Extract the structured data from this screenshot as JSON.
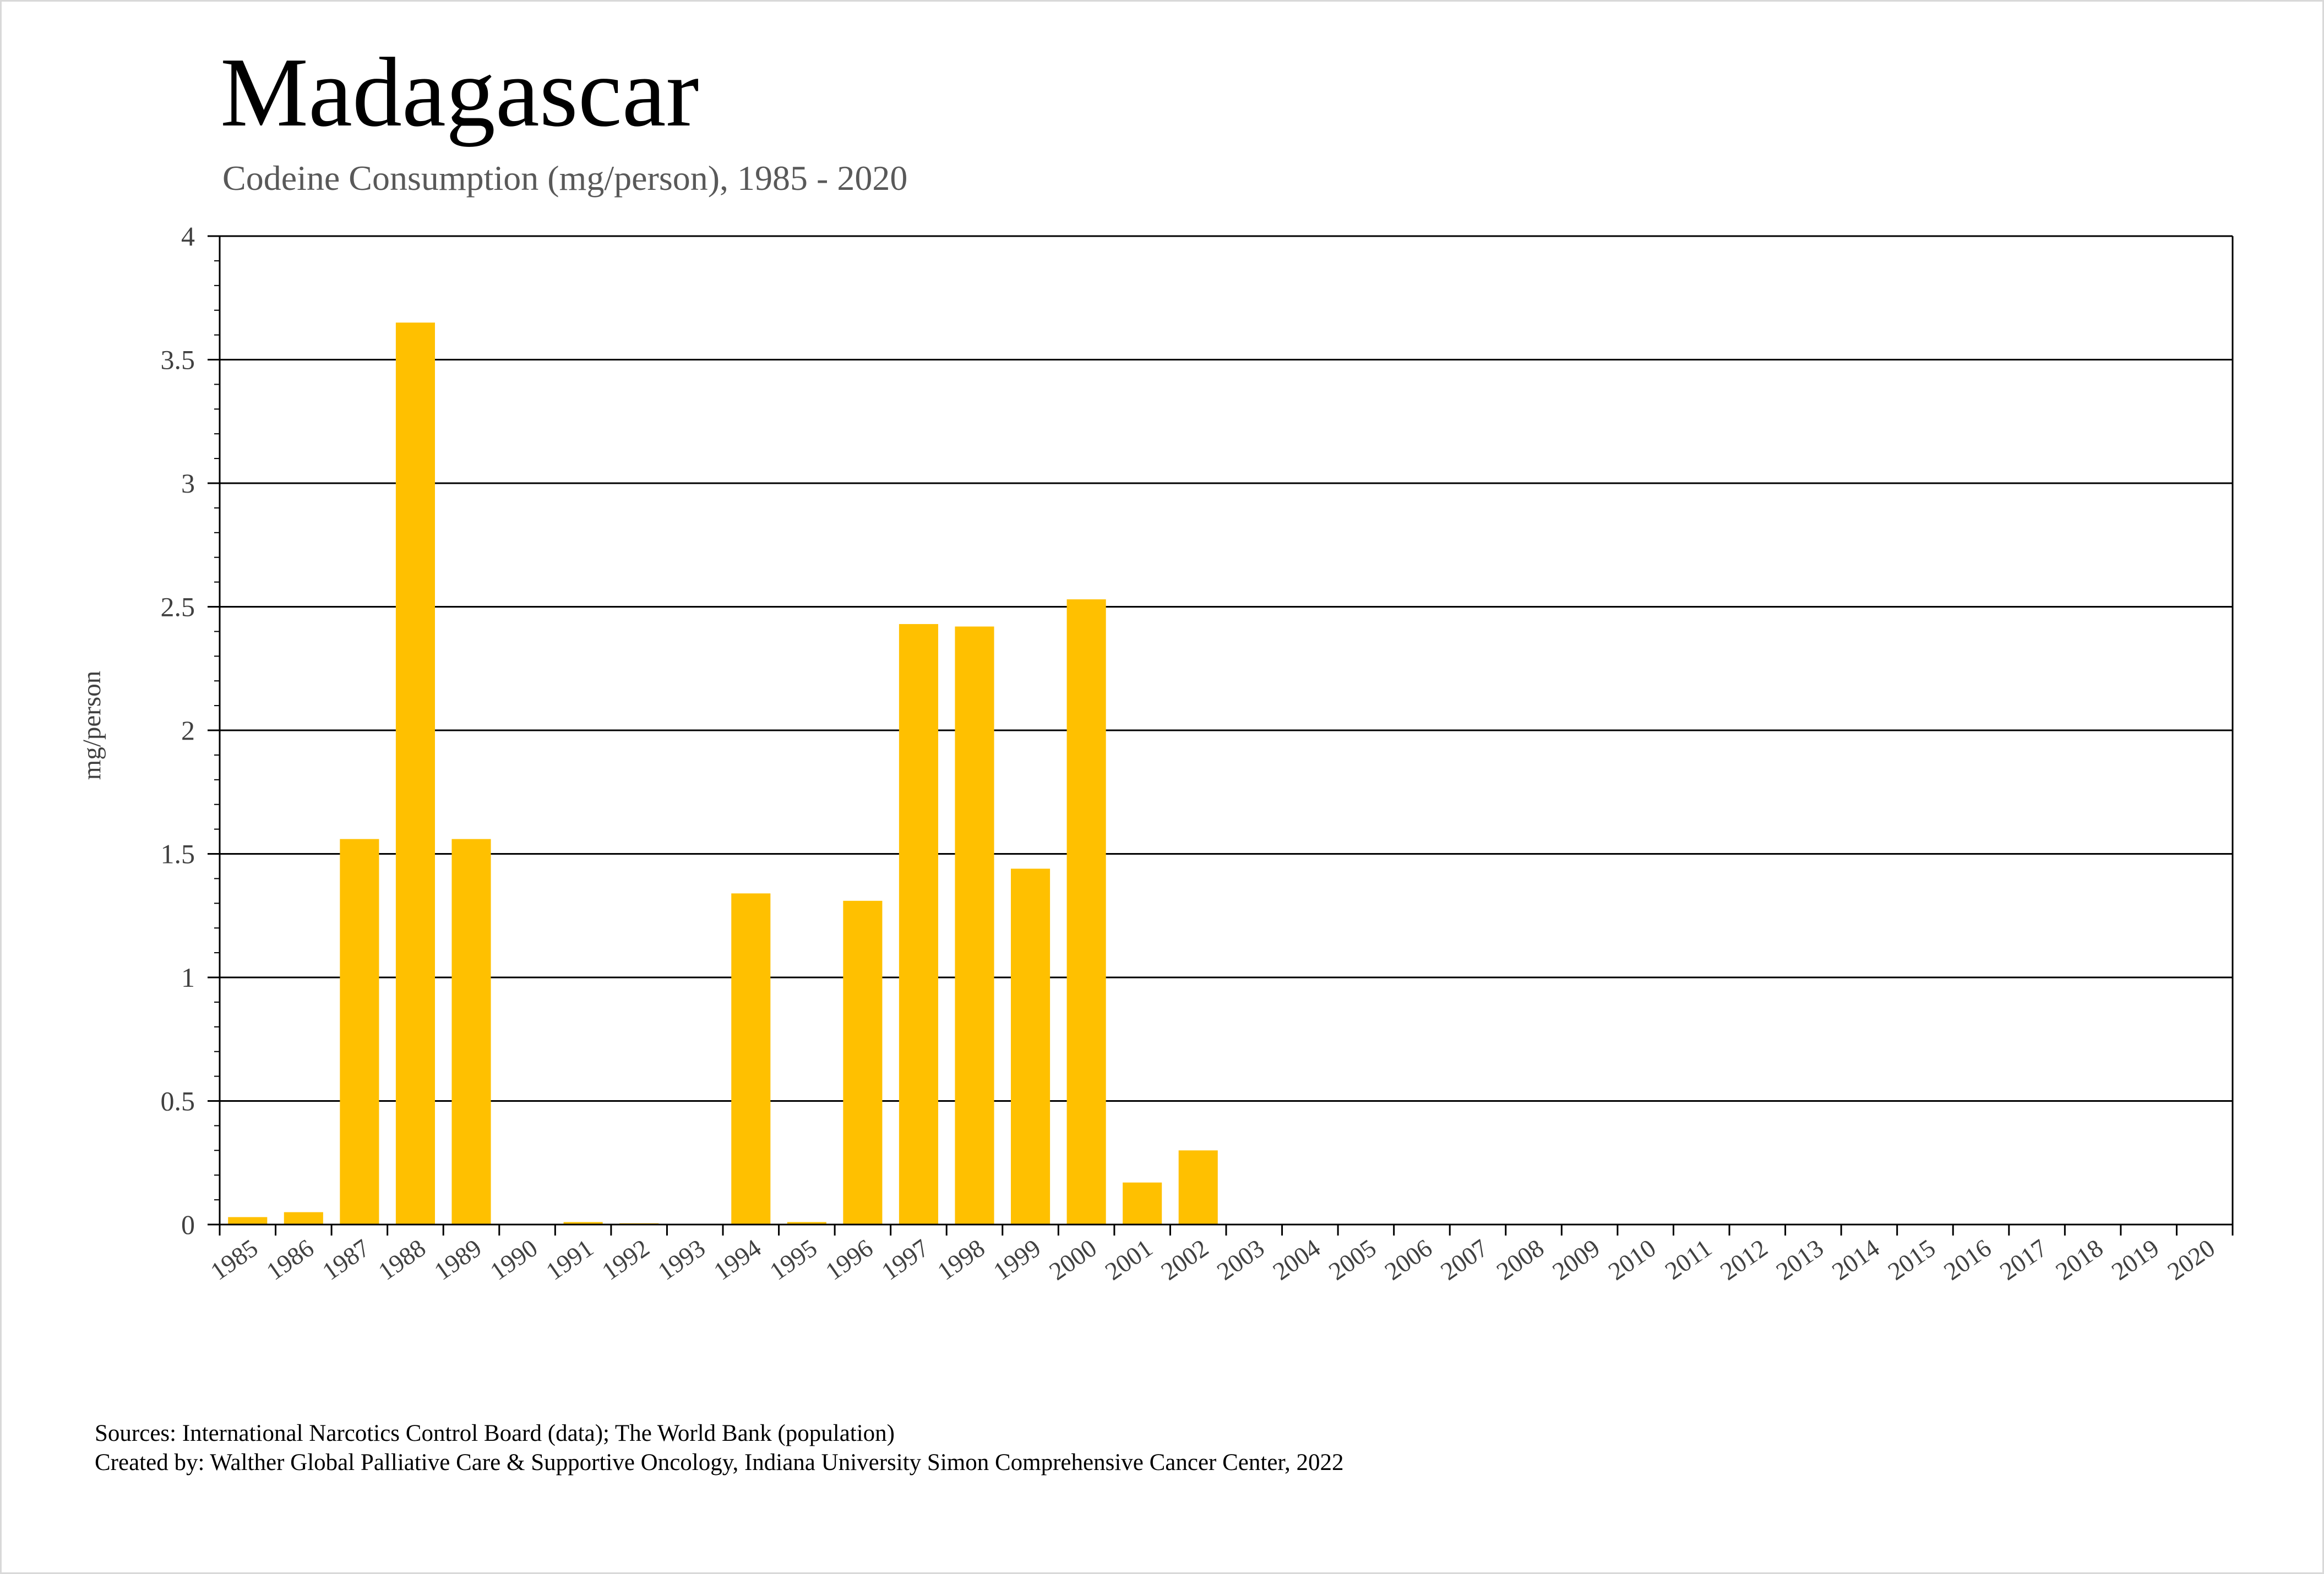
{
  "title": "Madagascar",
  "subtitle": "Codeine Consumption (mg/person), 1985 - 2020",
  "footer": {
    "sources": "Sources: International Narcotics Control Board (data); The World Bank (population)",
    "created_by": "Created by: Walther Global Palliative Care & Supportive Oncology, Indiana University Simon Comprehensive Cancer Center, 2022"
  },
  "colors": {
    "bar": "#FFC000",
    "grid": "#000000",
    "axis_text": "#404040"
  },
  "chart_data": {
    "type": "bar",
    "title": "Madagascar",
    "subtitle": "Codeine Consumption (mg/person), 1985 - 2020",
    "xlabel": "",
    "ylabel": "mg/person",
    "ylim": [
      0,
      4
    ],
    "yticks": [
      "0",
      "0.5",
      "1",
      "1.5",
      "2",
      "2.5",
      "3",
      "3.5",
      "4"
    ],
    "grid": true,
    "legend": "none",
    "categories": [
      "1985",
      "1986",
      "1987",
      "1988",
      "1989",
      "1990",
      "1991",
      "1992",
      "1993",
      "1994",
      "1995",
      "1996",
      "1997",
      "1998",
      "1999",
      "2000",
      "2001",
      "2002",
      "2003",
      "2004",
      "2005",
      "2006",
      "2007",
      "2008",
      "2009",
      "2010",
      "2011",
      "2012",
      "2013",
      "2014",
      "2015",
      "2016",
      "2017",
      "2018",
      "2019",
      "2020"
    ],
    "values": [
      0.03,
      0.05,
      1.56,
      3.65,
      1.56,
      0,
      0.01,
      0.005,
      0,
      1.34,
      0.01,
      1.31,
      2.43,
      2.42,
      1.44,
      2.53,
      0.17,
      0.3,
      0,
      0,
      0,
      0,
      0,
      0,
      0,
      0,
      0,
      0,
      0,
      0,
      0,
      0,
      0,
      0,
      0,
      0
    ]
  }
}
